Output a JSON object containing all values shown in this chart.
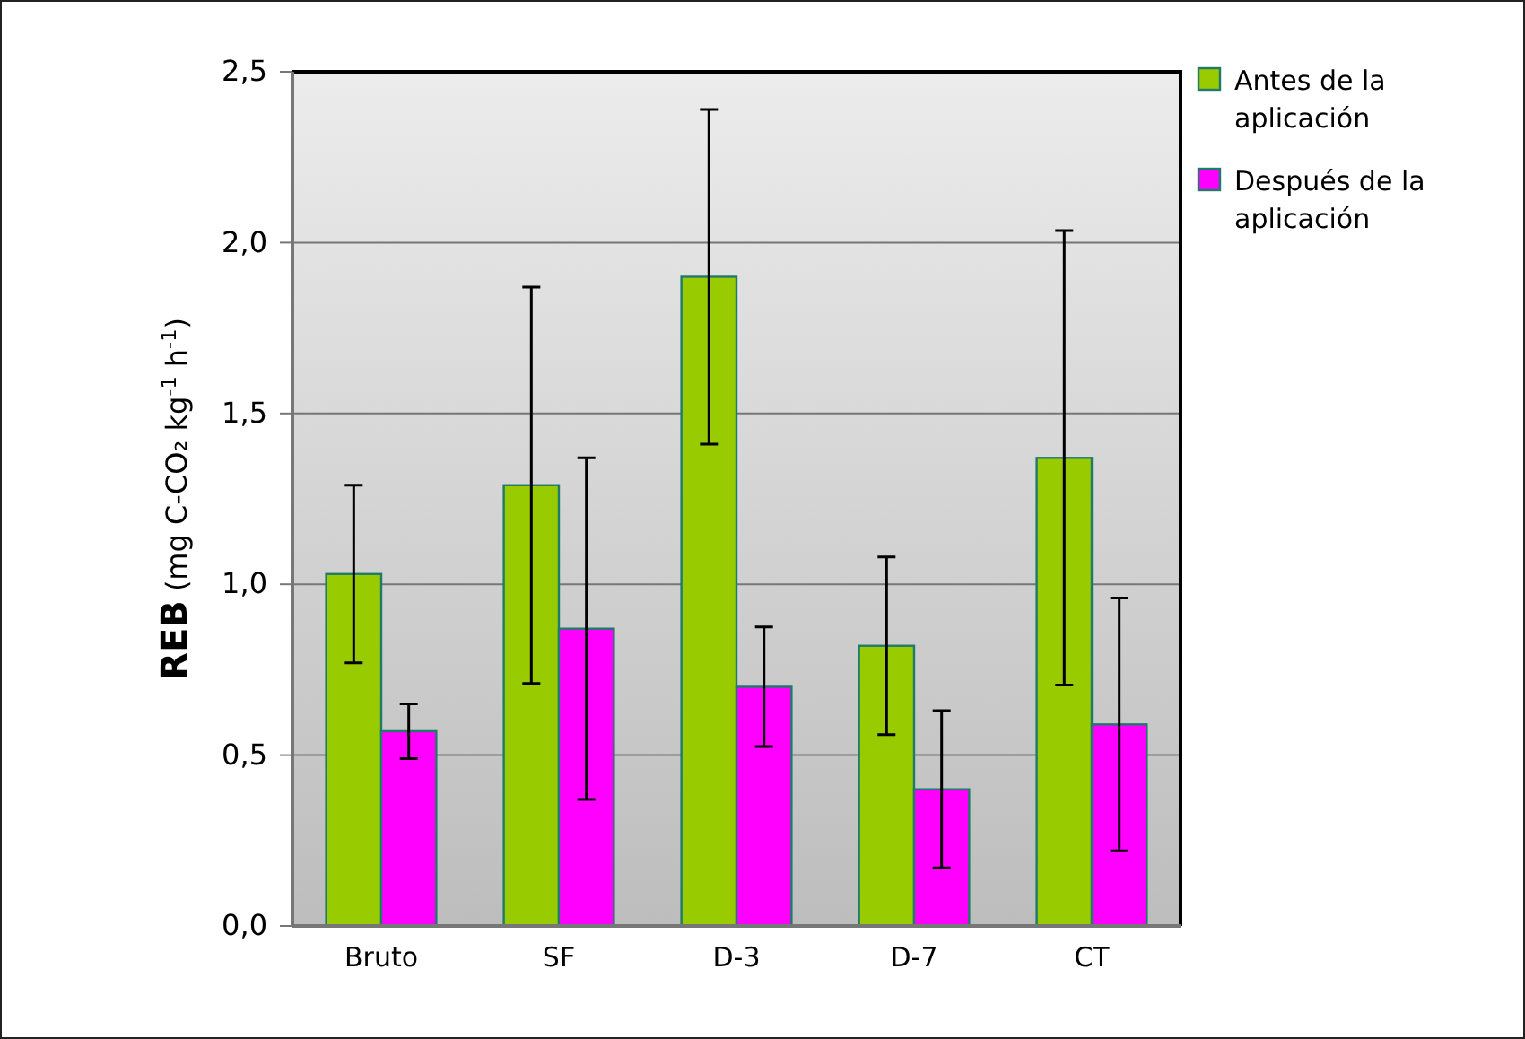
{
  "chart_data": {
    "type": "bar",
    "ylabel": "REB (mg C-CO₂  kg$^{-1}$ h$^{-1}$)",
    "categories": [
      "Bruto",
      "SF",
      "D-3",
      "D-7",
      "CT"
    ],
    "series": [
      {
        "name": "Antes de la aplicación",
        "color": "#99cc00",
        "values": [
          1.03,
          1.29,
          1.9,
          0.82,
          1.37
        ],
        "errors": [
          0.26,
          0.58,
          0.49,
          0.26,
          0.665
        ]
      },
      {
        "name": "Después de la aplicación",
        "color": "#ff00ff",
        "values": [
          0.57,
          0.87,
          0.7,
          0.4,
          0.59
        ],
        "errors": [
          0.08,
          0.5,
          0.175,
          0.23,
          0.37
        ]
      }
    ],
    "ylim": [
      0,
      2.5
    ],
    "yticks": [
      {
        "value": 0,
        "label": "0,0"
      },
      {
        "value": 0.5,
        "label": "0,5"
      },
      {
        "value": 1,
        "label": "1,0"
      },
      {
        "value": 1.5,
        "label": "1,5"
      },
      {
        "value": 2,
        "label": "2,0"
      },
      {
        "value": 2.5,
        "label": "2,5"
      }
    ],
    "grid": "y",
    "legend": "top right"
  }
}
